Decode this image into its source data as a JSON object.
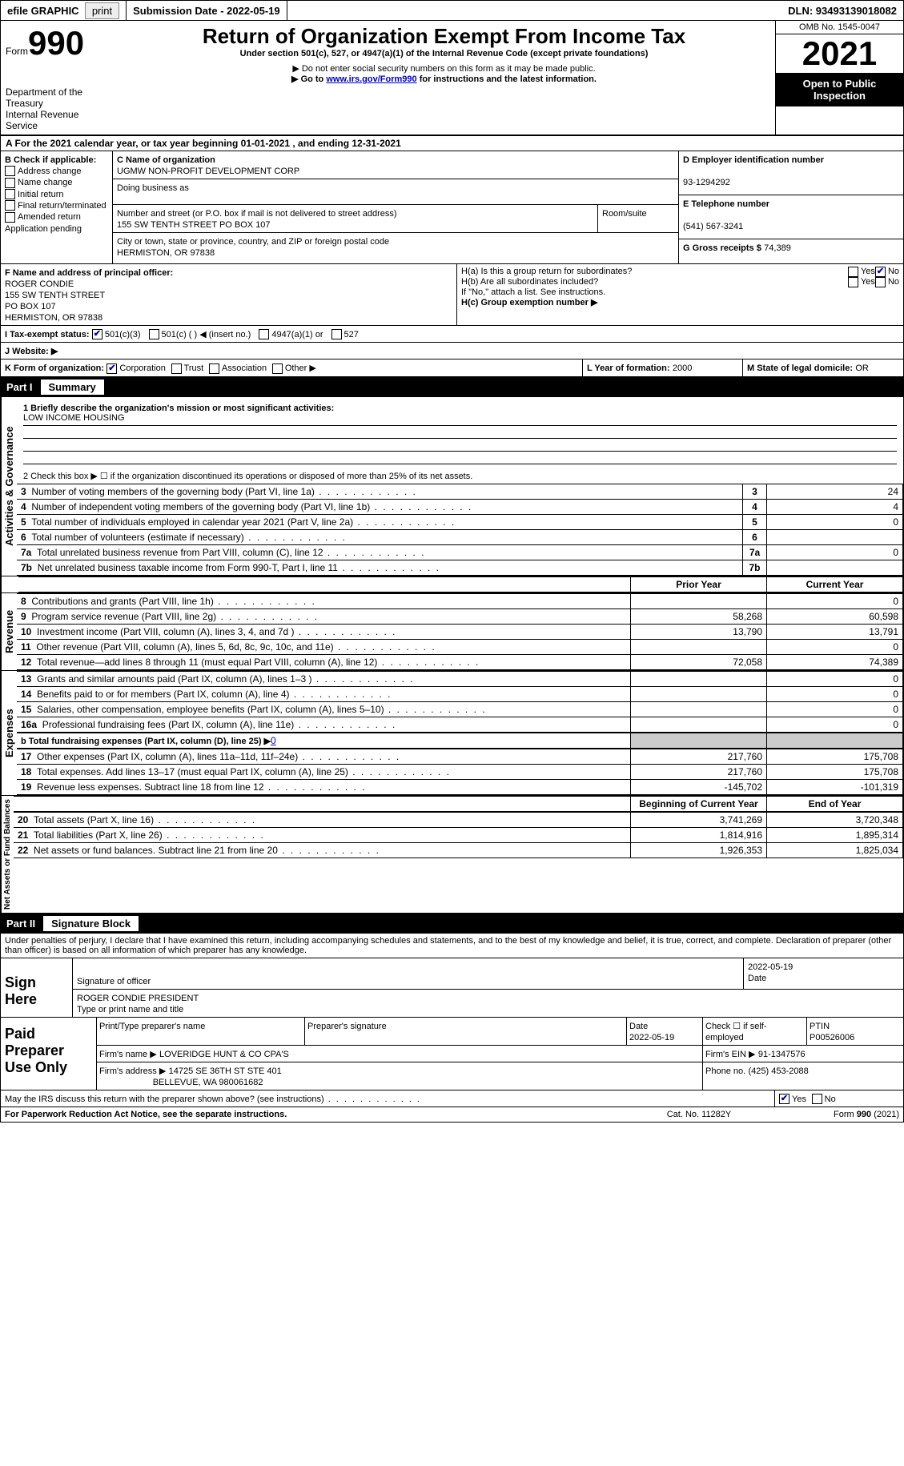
{
  "topbar": {
    "efile_label": "efile GRAPHIC",
    "print_label": "print",
    "submission_label": "Submission Date - 2022-05-19",
    "dln_label": "DLN: 93493139018082"
  },
  "header": {
    "form_word": "Form",
    "form_number": "990",
    "dept_line1": "Department of the Treasury",
    "dept_line2": "Internal Revenue Service",
    "title": "Return of Organization Exempt From Income Tax",
    "subtitle": "Under section 501(c), 527, or 4947(a)(1) of the Internal Revenue Code (except private foundations)",
    "note1": "▶ Do not enter social security numbers on this form as it may be made public.",
    "note2_a": "▶ Go to ",
    "note2_link": "www.irs.gov/Form990",
    "note2_b": " for instructions and the latest information.",
    "omb": "OMB No. 1545-0047",
    "year": "2021",
    "open": "Open to Public Inspection"
  },
  "sectionA": {
    "line": "A For the 2021 calendar year, or tax year beginning 01-01-2021   , and ending 12-31-2021"
  },
  "boxB": {
    "label": "B Check if applicable:",
    "items": [
      "Address change",
      "Name change",
      "Initial return",
      "Final return/terminated",
      "Amended return",
      "Application pending"
    ]
  },
  "boxC": {
    "label_name": "C Name of organization",
    "org_name": "UGMW NON-PROFIT DEVELOPMENT CORP",
    "dba_label": "Doing business as",
    "addr_label1": "Number and street (or P.O. box if mail is not delivered to street address)",
    "addr_label2": "Room/suite",
    "address": "155 SW TENTH STREET PO BOX 107",
    "city_label": "City or town, state or province, country, and ZIP or foreign postal code",
    "city": "HERMISTON, OR  97838"
  },
  "boxD": {
    "label": "D Employer identification number",
    "value": "93-1294292"
  },
  "boxE": {
    "label": "E Telephone number",
    "value": "(541) 567-3241"
  },
  "boxG": {
    "label": "G Gross receipts $",
    "value": "74,389"
  },
  "boxF": {
    "label": "F  Name and address of principal officer:",
    "name": "ROGER CONDIE",
    "addr1": "155 SW TENTH STREET",
    "addr2": "PO BOX 107",
    "addr3": "HERMISTON, OR  97838"
  },
  "boxH": {
    "ha": "H(a)  Is this a group return for subordinates?",
    "hb": "H(b)  Are all subordinates included?",
    "hb_note": "If \"No,\" attach a list. See instructions.",
    "hc": "H(c)  Group exemption number ▶",
    "yes": "Yes",
    "no": "No"
  },
  "boxI": {
    "label": "I  Tax-exempt status:",
    "opts": [
      "501(c)(3)",
      "501(c) (  ) ◀ (insert no.)",
      "4947(a)(1) or",
      "527"
    ]
  },
  "boxJ": {
    "label": "J  Website: ▶"
  },
  "boxK": {
    "label": "K Form of organization:",
    "opts": [
      "Corporation",
      "Trust",
      "Association",
      "Other ▶"
    ]
  },
  "boxL": {
    "label": "L Year of formation:",
    "value": "2000"
  },
  "boxM": {
    "label": "M State of legal domicile:",
    "value": "OR"
  },
  "part1": {
    "label": "Part I",
    "title": "Summary"
  },
  "summary": {
    "q1_label": "1  Briefly describe the organization's mission or most significant activities:",
    "q1_value": "LOW INCOME HOUSING",
    "q2": "2   Check this box ▶ ☐  if the organization discontinued its operations or disposed of more than 25% of its net assets.",
    "lines_top": [
      {
        "n": "3",
        "t": "Number of voting members of the governing body (Part VI, line 1a)",
        "v": "24"
      },
      {
        "n": "4",
        "t": "Number of independent voting members of the governing body (Part VI, line 1b)",
        "v": "4"
      },
      {
        "n": "5",
        "t": "Total number of individuals employed in calendar year 2021 (Part V, line 2a)",
        "v": "0"
      },
      {
        "n": "6",
        "t": "Total number of volunteers (estimate if necessary)",
        "v": ""
      },
      {
        "n": "7a",
        "t": "Total unrelated business revenue from Part VIII, column (C), line 12",
        "v": "0"
      },
      {
        "n": "7b",
        "t": "Net unrelated business taxable income from Form 990-T, Part I, line 11",
        "v": ""
      }
    ],
    "col_prior": "Prior Year",
    "col_current": "Current Year",
    "revenue": [
      {
        "n": "8",
        "t": "Contributions and grants (Part VIII, line 1h)",
        "p": "",
        "c": "0"
      },
      {
        "n": "9",
        "t": "Program service revenue (Part VIII, line 2g)",
        "p": "58,268",
        "c": "60,598"
      },
      {
        "n": "10",
        "t": "Investment income (Part VIII, column (A), lines 3, 4, and 7d )",
        "p": "13,790",
        "c": "13,791"
      },
      {
        "n": "11",
        "t": "Other revenue (Part VIII, column (A), lines 5, 6d, 8c, 9c, 10c, and 11e)",
        "p": "",
        "c": "0"
      },
      {
        "n": "12",
        "t": "Total revenue—add lines 8 through 11 (must equal Part VIII, column (A), line 12)",
        "p": "72,058",
        "c": "74,389"
      }
    ],
    "expenses": [
      {
        "n": "13",
        "t": "Grants and similar amounts paid (Part IX, column (A), lines 1–3 )",
        "p": "",
        "c": "0"
      },
      {
        "n": "14",
        "t": "Benefits paid to or for members (Part IX, column (A), line 4)",
        "p": "",
        "c": "0"
      },
      {
        "n": "15",
        "t": "Salaries, other compensation, employee benefits (Part IX, column (A), lines 5–10)",
        "p": "",
        "c": "0"
      },
      {
        "n": "16a",
        "t": "Professional fundraising fees (Part IX, column (A), line 11e)",
        "p": "",
        "c": "0"
      }
    ],
    "line_b_label": "b  Total fundraising expenses (Part IX, column (D), line 25) ▶",
    "line_b_val": "0",
    "expenses2": [
      {
        "n": "17",
        "t": "Other expenses (Part IX, column (A), lines 11a–11d, 11f–24e)",
        "p": "217,760",
        "c": "175,708"
      },
      {
        "n": "18",
        "t": "Total expenses. Add lines 13–17 (must equal Part IX, column (A), line 25)",
        "p": "217,760",
        "c": "175,708"
      },
      {
        "n": "19",
        "t": "Revenue less expenses. Subtract line 18 from line 12",
        "p": "-145,702",
        "c": "-101,319"
      }
    ],
    "col_begin": "Beginning of Current Year",
    "col_end": "End of Year",
    "netassets": [
      {
        "n": "20",
        "t": "Total assets (Part X, line 16)",
        "p": "3,741,269",
        "c": "3,720,348"
      },
      {
        "n": "21",
        "t": "Total liabilities (Part X, line 26)",
        "p": "1,814,916",
        "c": "1,895,314"
      },
      {
        "n": "22",
        "t": "Net assets or fund balances. Subtract line 21 from line 20",
        "p": "1,926,353",
        "c": "1,825,034"
      }
    ],
    "vert_gov": "Activities & Governance",
    "vert_rev": "Revenue",
    "vert_exp": "Expenses",
    "vert_net": "Net Assets or Fund Balances"
  },
  "part2": {
    "label": "Part II",
    "title": "Signature Block"
  },
  "sig": {
    "penalty": "Under penalties of perjury, I declare that I have examined this return, including accompanying schedules and statements, and to the best of my knowledge and belief, it is true, correct, and complete. Declaration of preparer (other than officer) is based on all information of which preparer has any knowledge.",
    "sign_here": "Sign Here",
    "sig_off": "Signature of officer",
    "date": "Date",
    "date_val": "2022-05-19",
    "name_title": "ROGER CONDIE  PRESIDENT",
    "name_label": "Type or print name and title",
    "paid": "Paid Preparer Use Only",
    "prep_name_label": "Print/Type preparer's name",
    "prep_sig_label": "Preparer's signature",
    "prep_date_label": "Date",
    "prep_date_val": "2022-05-19",
    "check_self": "Check ☐ if self-employed",
    "ptin_label": "PTIN",
    "ptin": "P00526006",
    "firm_name_label": "Firm's name    ▶",
    "firm_name": "LOVERIDGE HUNT & CO CPA'S",
    "firm_ein_label": "Firm's EIN ▶",
    "firm_ein": "91-1347576",
    "firm_addr_label": "Firm's address ▶",
    "firm_addr1": "14725 SE 36TH ST STE 401",
    "firm_addr2": "BELLEVUE, WA  980061682",
    "firm_phone_label": "Phone no.",
    "firm_phone": "(425) 453-2088"
  },
  "footer": {
    "q": "May the IRS discuss this return with the preparer shown above? (see instructions)",
    "yes": "Yes",
    "no": "No",
    "pra": "For Paperwork Reduction Act Notice, see the separate instructions.",
    "cat": "Cat. No. 11282Y",
    "form": "Form 990 (2021)"
  },
  "colors": {
    "black": "#000000",
    "link": "#0000cc",
    "shade": "#cccccc",
    "btn": "#eeeeee"
  }
}
